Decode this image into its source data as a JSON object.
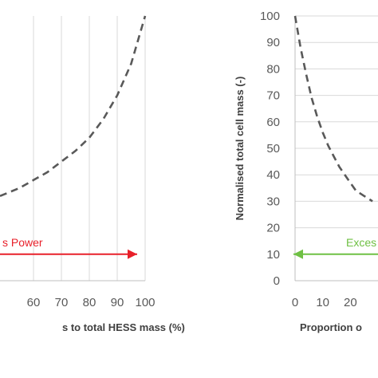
{
  "chart_data": [
    {
      "type": "line",
      "panel": "left",
      "xlabel": "s to total HESS mass (%)",
      "ylabel": "",
      "xlim": [
        48,
        100
      ],
      "ylim": [
        0,
        100
      ],
      "x_ticks": [
        60,
        70,
        80,
        90,
        100
      ],
      "grid": "vertical",
      "series": [
        {
          "line_style": "dashed",
          "color": "#595959",
          "x": [
            48,
            55,
            60,
            65,
            70,
            75,
            80,
            85,
            90,
            95,
            100
          ],
          "y": [
            32,
            35,
            38,
            41,
            45,
            49,
            54,
            61,
            70,
            82,
            100
          ]
        }
      ],
      "annotation": {
        "text": "s Power",
        "color": "#e8202a",
        "arrow": "right",
        "arrow_y": 10
      }
    },
    {
      "type": "line",
      "panel": "right",
      "xlabel": "Proportion o",
      "ylabel": "Normalised total cell mass (-)",
      "xlim": [
        0,
        30
      ],
      "ylim": [
        0,
        100
      ],
      "x_ticks": [
        0,
        10,
        20
      ],
      "y_ticks": [
        0,
        10,
        20,
        30,
        40,
        50,
        60,
        70,
        80,
        90,
        100
      ],
      "grid": "horizontal",
      "series": [
        {
          "line_style": "dashed",
          "color": "#595959",
          "x": [
            0,
            2,
            4,
            6,
            8,
            10,
            12,
            14,
            16,
            18,
            20,
            22,
            25,
            28
          ],
          "y": [
            100,
            88,
            78,
            69,
            62,
            56,
            51,
            47,
            43,
            40,
            37,
            34,
            32,
            30
          ]
        }
      ],
      "annotation": {
        "text": "Exces",
        "color": "#6fc044",
        "arrow": "left",
        "arrow_y": 10
      }
    }
  ]
}
